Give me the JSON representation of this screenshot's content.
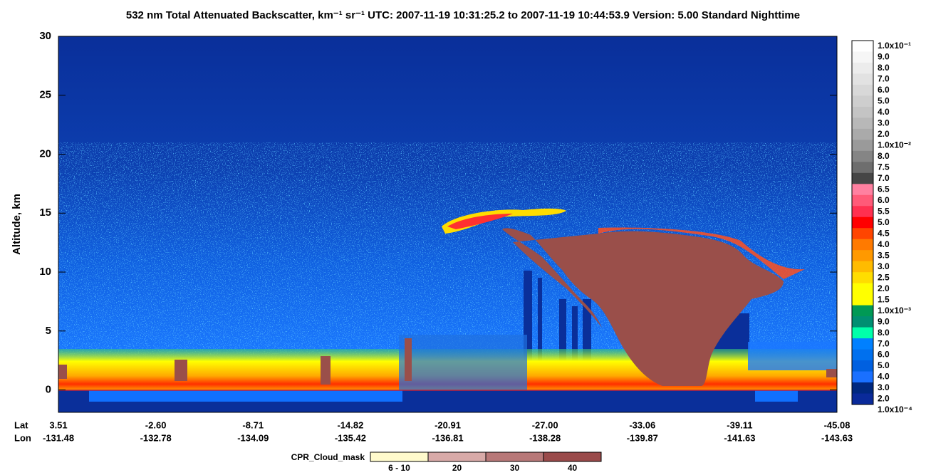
{
  "chart_data": {
    "type": "curtain",
    "title": "532 nm Total Attenuated Backscatter, km⁻¹ sr⁻¹    UTC:  2007-11-19 10:31:25.2  to  2007-11-19 10:44:53.9    Version: 5.00  Standard  Nighttime",
    "y_label": "Altitude, km",
    "ylim": [
      -1.9,
      30
    ],
    "yticks": [
      0,
      5,
      10,
      15,
      20,
      25,
      30
    ],
    "x_rows": [
      {
        "name": "Lat",
        "labels": [
          "3.51",
          "-2.60",
          "-8.71",
          "-14.82",
          "-20.91",
          "-27.00",
          "-33.06",
          "-39.11",
          "-45.08"
        ]
      },
      {
        "name": "Lon",
        "labels": [
          "-131.48",
          "-132.78",
          "-134.09",
          "-135.42",
          "-136.81",
          "-138.28",
          "-139.87",
          "-141.63",
          "-143.63"
        ]
      }
    ],
    "colorbar": {
      "labels": [
        "1.0x10⁻¹",
        "9.0",
        "8.0",
        "7.0",
        "6.0",
        "5.0",
        "4.0",
        "3.0",
        "2.0",
        "1.0x10⁻²",
        "8.0",
        "7.5",
        "7.0",
        "6.5",
        "6.0",
        "5.5",
        "5.0",
        "4.5",
        "4.0",
        "3.5",
        "3.0",
        "2.5",
        "2.0",
        "1.5",
        "1.0x10⁻³",
        "9.0",
        "8.0",
        "7.0",
        "6.0",
        "5.0",
        "4.0",
        "3.0",
        "2.0",
        "1.0x10⁻⁴"
      ],
      "colors": [
        "#ffffff",
        "#f6f6f6",
        "#ececec",
        "#e2e2e2",
        "#d8d8d8",
        "#cecece",
        "#c4c4c4",
        "#b8b8b8",
        "#aaaaaa",
        "#9a9a9a",
        "#858585",
        "#6e6e6e",
        "#464646",
        "#ff80a0",
        "#ff5a78",
        "#ff3050",
        "#ff0000",
        "#ff4500",
        "#ff7a00",
        "#ff9900",
        "#ffbb00",
        "#ffdd00",
        "#ffff00",
        "#ffff00",
        "#009955",
        "#008f72",
        "#00ffaa",
        "#0080ff",
        "#0070ee",
        "#0060e0",
        "#1a70ff",
        "#00287f",
        "#0a2a9a"
      ]
    },
    "mask_legend": {
      "title": "CPR_Cloud_mask",
      "categories": [
        "6 - 10",
        "20",
        "30",
        "40"
      ],
      "colors": [
        "#fffacc",
        "#d8aaa8",
        "#b87878",
        "#9a4a4a"
      ]
    }
  }
}
